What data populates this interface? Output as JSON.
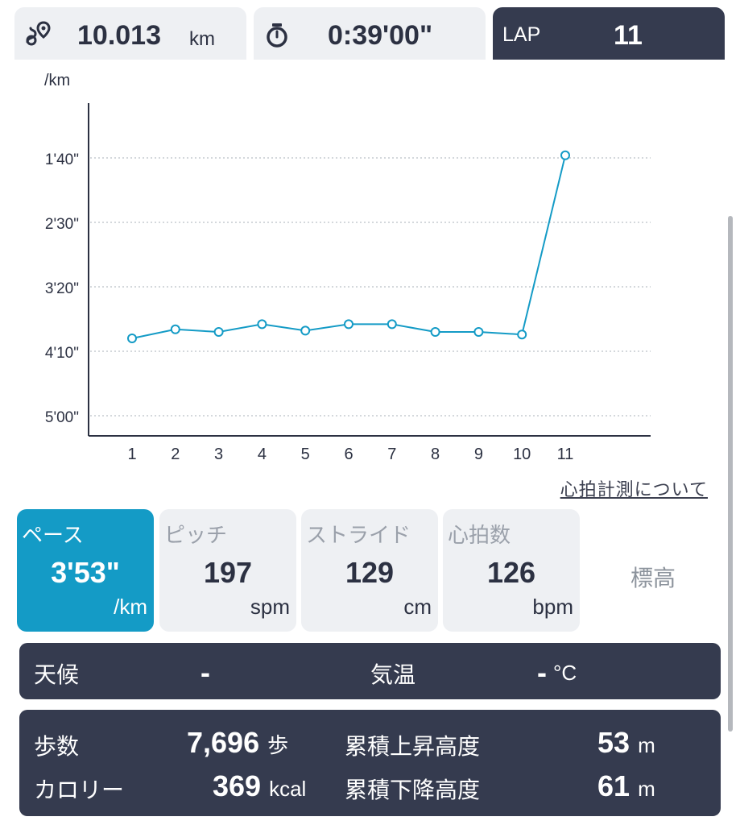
{
  "header": {
    "distance": {
      "icon": "route-pin-icon",
      "value": "10.013",
      "unit": "km"
    },
    "time": {
      "icon": "stopwatch-icon",
      "value": "0:39'00\""
    },
    "lap": {
      "label": "LAP",
      "value": "11"
    }
  },
  "chart_data": {
    "type": "line",
    "ylabel": "/km",
    "y_ticks": [
      "1'40\"",
      "2'30\"",
      "3'20\"",
      "4'10\"",
      "5'00\""
    ],
    "y_tick_seconds": [
      100,
      150,
      200,
      250,
      300
    ],
    "y_inverted": true,
    "ylim_seconds": [
      300,
      61
    ],
    "categories": [
      "1",
      "2",
      "3",
      "4",
      "5",
      "6",
      "7",
      "8",
      "9",
      "10",
      "11"
    ],
    "values_seconds": [
      240,
      233,
      235,
      229,
      234,
      229,
      229,
      235,
      235,
      237,
      98
    ],
    "grid": true,
    "color": "#149bc6"
  },
  "hr_link": "心拍計測について",
  "metrics": [
    {
      "title": "ペース",
      "value": "3'53\"",
      "unit": "/km",
      "active": true
    },
    {
      "title": "ピッチ",
      "value": "197",
      "unit": "spm",
      "active": false
    },
    {
      "title": "ストライド",
      "value": "129",
      "unit": "cm",
      "active": false
    },
    {
      "title": "心拍数",
      "value": "126",
      "unit": "bpm",
      "active": false
    },
    {
      "title": "標高",
      "active": false
    }
  ],
  "weather": {
    "weather_label": "天候",
    "weather_value": "-",
    "temp_label": "気温",
    "temp_value": "-",
    "temp_unit": "°C"
  },
  "stats": {
    "steps_label": "歩数",
    "steps_value": "7,696",
    "steps_unit": "歩",
    "calories_label": "カロリー",
    "calories_value": "369",
    "calories_unit": "kcal",
    "ascent_label": "累積上昇高度",
    "ascent_value": "53",
    "ascent_unit": "m",
    "descent_label": "累積下降高度",
    "descent_value": "61",
    "descent_unit": "m"
  }
}
